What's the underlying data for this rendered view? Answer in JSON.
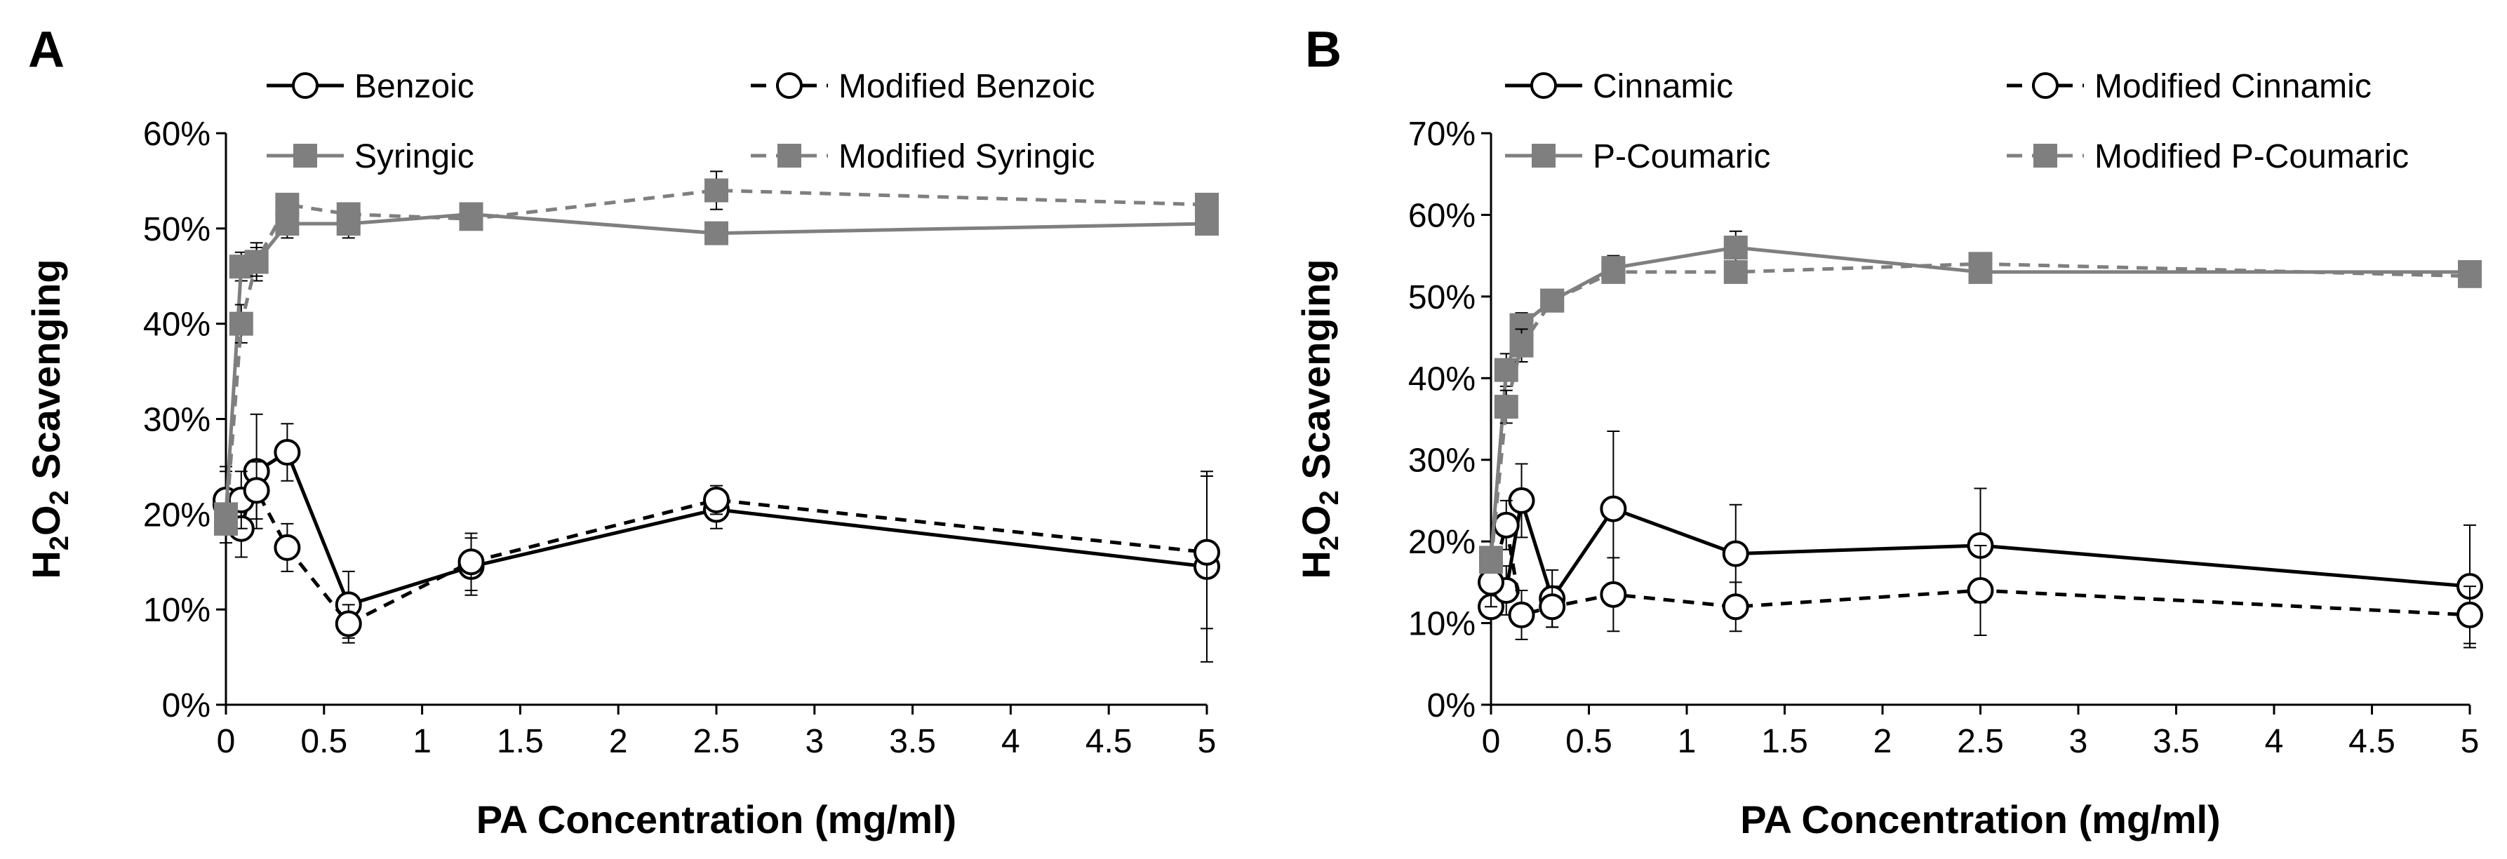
{
  "chart_data": [
    {
      "type": "line",
      "panel_label": "A",
      "xlabel": "PA Concentration (mg/ml)",
      "ylabel_prefix": "H",
      "ylabel_sub": "2",
      "ylabel_mid": "O",
      "ylabel_sub2": "2",
      "ylabel_suffix": " Scavenging",
      "xlim": [
        0,
        5
      ],
      "ylim": [
        0,
        0.6
      ],
      "xticks": [
        0,
        0.5,
        1,
        1.5,
        2,
        2.5,
        3,
        3.5,
        4,
        4.5,
        5
      ],
      "xtick_labels": [
        "0",
        "0.5",
        "1",
        "1.5",
        "2",
        "2.5",
        "3",
        "3.5",
        "4",
        "4.5",
        "5"
      ],
      "yticks": [
        0,
        0.1,
        0.2,
        0.3,
        0.4,
        0.5,
        0.6
      ],
      "ytick_labels": [
        "0%",
        "10%",
        "20%",
        "30%",
        "40%",
        "50%",
        "60%"
      ],
      "legend": [
        "Benzoic",
        "Modified Benzoic",
        "Syringic",
        "Modified Syringic"
      ],
      "series": [
        {
          "name": "Benzoic",
          "color": "#000000",
          "dash": "solid",
          "marker": "circle-open",
          "x": [
            0,
            0.078,
            0.156,
            0.3125,
            0.625,
            1.25,
            2.5,
            5
          ],
          "y": [
            0.21,
            0.185,
            0.245,
            0.265,
            0.105,
            0.145,
            0.205,
            0.145
          ],
          "err": [
            0.04,
            0.03,
            0.06,
            0.03,
            0.035,
            0.03,
            0.02,
            0.1
          ]
        },
        {
          "name": "Modified Benzoic",
          "color": "#000000",
          "dash": "dashed",
          "marker": "circle-open",
          "x": [
            0,
            0.078,
            0.156,
            0.3125,
            0.625,
            1.25,
            2.5,
            5
          ],
          "y": [
            0.215,
            0.215,
            0.225,
            0.165,
            0.085,
            0.15,
            0.215,
            0.16
          ],
          "err": [
            0.03,
            0.03,
            0.03,
            0.025,
            0.02,
            0.03,
            0.015,
            0.08
          ]
        },
        {
          "name": "Syringic",
          "color": "#7f7f7f",
          "dash": "solid",
          "marker": "square",
          "x": [
            0,
            0.078,
            0.156,
            0.3125,
            0.625,
            1.25,
            2.5,
            5
          ],
          "y": [
            0.2,
            0.46,
            0.465,
            0.505,
            0.505,
            0.515,
            0.495,
            0.505
          ],
          "err": [
            0.01,
            0.015,
            0.02,
            0.015,
            0.015,
            0.01,
            0.01,
            0.01
          ]
        },
        {
          "name": "Modified Syringic",
          "color": "#7f7f7f",
          "dash": "dashed",
          "marker": "square",
          "x": [
            0,
            0.078,
            0.156,
            0.3125,
            0.625,
            1.25,
            2.5,
            5
          ],
          "y": [
            0.19,
            0.4,
            0.465,
            0.525,
            0.515,
            0.51,
            0.54,
            0.525
          ],
          "err": [
            0.01,
            0.02,
            0.015,
            0.01,
            0.01,
            0.01,
            0.02,
            0.01
          ]
        }
      ]
    },
    {
      "type": "line",
      "panel_label": "B",
      "xlabel": "PA Concentration (mg/ml)",
      "ylabel_prefix": "H",
      "ylabel_sub": "2",
      "ylabel_mid": "O",
      "ylabel_sub2": "2",
      "ylabel_suffix": " Scavenging",
      "xlim": [
        0,
        5
      ],
      "ylim": [
        0,
        0.7
      ],
      "xticks": [
        0,
        0.5,
        1,
        1.5,
        2,
        2.5,
        3,
        3.5,
        4,
        4.5,
        5
      ],
      "xtick_labels": [
        "0",
        "0.5",
        "1",
        "1.5",
        "2",
        "2.5",
        "3",
        "3.5",
        "4",
        "4.5",
        "5"
      ],
      "yticks": [
        0,
        0.1,
        0.2,
        0.3,
        0.4,
        0.5,
        0.6,
        0.7
      ],
      "ytick_labels": [
        "0%",
        "10%",
        "20%",
        "30%",
        "40%",
        "50%",
        "60%",
        "70%"
      ],
      "legend": [
        "Cinnamic",
        "Modified Cinnamic",
        "P-Coumaric",
        "Modified P-Coumaric"
      ],
      "series": [
        {
          "name": "Cinnamic",
          "color": "#000000",
          "dash": "solid",
          "marker": "circle-open",
          "x": [
            0,
            0.078,
            0.156,
            0.3125,
            0.625,
            1.25,
            2.5,
            5
          ],
          "y": [
            0.12,
            0.14,
            0.25,
            0.13,
            0.24,
            0.185,
            0.195,
            0.145
          ],
          "err": [
            0.01,
            0.03,
            0.045,
            0.035,
            0.095,
            0.06,
            0.07,
            0.075
          ]
        },
        {
          "name": "Modified Cinnamic",
          "color": "#000000",
          "dash": "dashed",
          "marker": "circle-open",
          "x": [
            0,
            0.078,
            0.156,
            0.3125,
            0.625,
            1.25,
            2.5,
            5
          ],
          "y": [
            0.15,
            0.22,
            0.11,
            0.12,
            0.135,
            0.12,
            0.14,
            0.11
          ],
          "err": [
            0.03,
            0.03,
            0.03,
            0.025,
            0.045,
            0.03,
            0.055,
            0.035
          ]
        },
        {
          "name": "P-Coumaric",
          "color": "#7f7f7f",
          "dash": "solid",
          "marker": "square",
          "x": [
            0,
            0.078,
            0.156,
            0.3125,
            0.625,
            1.25,
            2.5,
            5
          ],
          "y": [
            0.18,
            0.41,
            0.465,
            0.495,
            0.535,
            0.56,
            0.53,
            0.53
          ],
          "err": [
            0.01,
            0.02,
            0.015,
            0.01,
            0.015,
            0.02,
            0.01,
            0.01
          ]
        },
        {
          "name": "Modified P-Coumaric",
          "color": "#7f7f7f",
          "dash": "dashed",
          "marker": "square",
          "x": [
            0,
            0.078,
            0.156,
            0.3125,
            0.625,
            1.25,
            2.5,
            5
          ],
          "y": [
            0.175,
            0.365,
            0.44,
            0.495,
            0.53,
            0.53,
            0.54,
            0.525
          ],
          "err": [
            0.01,
            0.02,
            0.02,
            0.01,
            0.01,
            0.01,
            0.01,
            0.01
          ]
        }
      ]
    }
  ]
}
